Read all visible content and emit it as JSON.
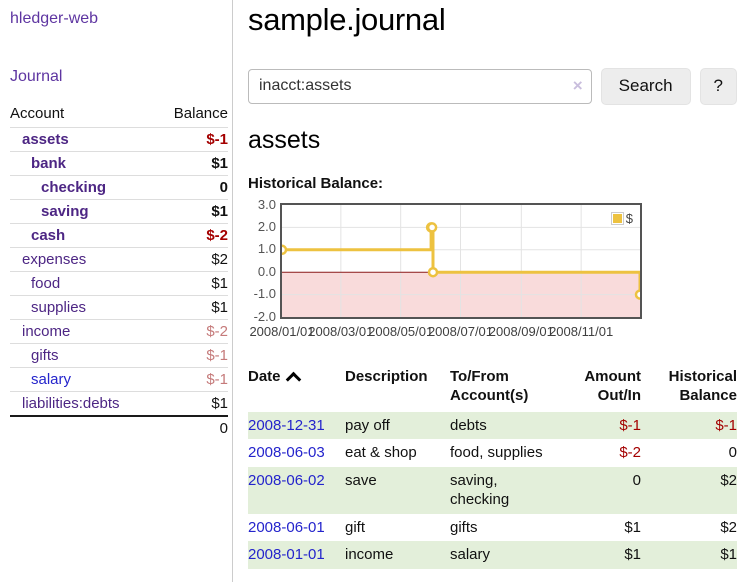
{
  "sidebar": {
    "brand": "hledger-web",
    "journal_label": "Journal",
    "accounts_table": {
      "account_header": "Account",
      "balance_header": "Balance",
      "rows": [
        {
          "name": "assets",
          "depth": 1,
          "bold": true,
          "balance": "$-1",
          "neg": "strong",
          "link": "purple"
        },
        {
          "name": "bank",
          "depth": 2,
          "bold": true,
          "balance": "$1",
          "neg": "none",
          "link": "purple"
        },
        {
          "name": "checking",
          "depth": 3,
          "bold": true,
          "balance": "0",
          "neg": "none",
          "link": "purple"
        },
        {
          "name": "saving",
          "depth": 3,
          "bold": true,
          "balance": "$1",
          "neg": "none",
          "link": "purple"
        },
        {
          "name": "cash",
          "depth": 2,
          "bold": true,
          "balance": "$-2",
          "neg": "strong",
          "link": "purple"
        },
        {
          "name": "expenses",
          "depth": 1,
          "bold": false,
          "balance": "$2",
          "neg": "none",
          "link": "purple"
        },
        {
          "name": "food",
          "depth": 2,
          "bold": false,
          "balance": "$1",
          "neg": "none",
          "link": "purple"
        },
        {
          "name": "supplies",
          "depth": 2,
          "bold": false,
          "balance": "$1",
          "neg": "none",
          "link": "purple"
        },
        {
          "name": "income",
          "depth": 1,
          "bold": false,
          "balance": "$-2",
          "neg": "soft",
          "link": "purple"
        },
        {
          "name": "gifts",
          "depth": 2,
          "bold": false,
          "balance": "$-1",
          "neg": "soft",
          "link": "purple"
        },
        {
          "name": "salary",
          "depth": 2,
          "bold": false,
          "balance": "$-1",
          "neg": "soft",
          "link": "blue"
        },
        {
          "name": "liabilities:debts",
          "depth": 1,
          "bold": false,
          "balance": "$1",
          "neg": "none",
          "link": "purple"
        }
      ],
      "total": "0"
    }
  },
  "main": {
    "title": "sample.journal",
    "search": {
      "value": "inacct:assets",
      "clear_icon": "×",
      "button_label": "Search",
      "help_label": "?"
    },
    "account_heading": "assets",
    "chart_label": "Historical Balance:"
  },
  "chart_data": {
    "type": "line",
    "title": "Historical Balance:",
    "style": "steps",
    "series": [
      {
        "name": "$",
        "color": "#edc240",
        "points": [
          [
            "2008-01-01",
            1
          ],
          [
            "2008-06-01",
            2
          ],
          [
            "2008-06-02",
            2
          ],
          [
            "2008-06-03",
            0
          ],
          [
            "2008-12-31",
            -1
          ]
        ]
      }
    ],
    "x_range": [
      "2008-01-01",
      "2008-12-31"
    ],
    "ylim": [
      -2,
      3
    ],
    "y_ticks": [
      {
        "v": 3,
        "label": "3.0"
      },
      {
        "v": 2,
        "label": "2.0"
      },
      {
        "v": 1,
        "label": "1.0"
      },
      {
        "v": 0,
        "label": "0.0"
      },
      {
        "v": -1,
        "label": "-1.0"
      },
      {
        "v": -2,
        "label": "-2.0"
      }
    ],
    "x_ticks": [
      {
        "d": "2008-01-01",
        "label": "2008/01/01"
      },
      {
        "d": "2008-03-01",
        "label": "2008/03/01"
      },
      {
        "d": "2008-05-01",
        "label": "2008/05/01"
      },
      {
        "d": "2008-07-01",
        "label": "2008/07/01"
      },
      {
        "d": "2008-09-01",
        "label": "2008/09/01"
      },
      {
        "d": "2008-11-01",
        "label": "2008/11/01"
      }
    ],
    "legend": {
      "position": "top-right",
      "entries": [
        "$"
      ]
    },
    "grid": true,
    "zero_line_color": "#8b1a1a",
    "negative_region_color": "#f9dbdb",
    "grid_color": "#e3e3e3"
  },
  "register": {
    "headers": {
      "date": "Date",
      "sort_indicator": "ascending",
      "description": "Description",
      "accounts": "To/From Account(s)",
      "amount": "Amount Out/In",
      "balance": "Historical Balance"
    },
    "rows": [
      {
        "date": "2008-12-31",
        "description": "pay off",
        "accounts": "debts",
        "amount": "$-1",
        "amount_neg": true,
        "balance": "$-1",
        "balance_neg": true,
        "shaded": true
      },
      {
        "date": "2008-06-03",
        "description": "eat & shop",
        "accounts": "food, supplies",
        "amount": "$-2",
        "amount_neg": true,
        "balance": "0",
        "balance_neg": false,
        "shaded": false
      },
      {
        "date": "2008-06-02",
        "description": "save",
        "accounts": "saving, checking",
        "amount": "0",
        "amount_neg": false,
        "balance": "$2",
        "balance_neg": false,
        "shaded": true
      },
      {
        "date": "2008-06-01",
        "description": "gift",
        "accounts": "gifts",
        "amount": "$1",
        "amount_neg": false,
        "balance": "$2",
        "balance_neg": false,
        "shaded": false
      },
      {
        "date": "2008-01-01",
        "description": "income",
        "accounts": "salary",
        "amount": "$1",
        "amount_neg": false,
        "balance": "$1",
        "balance_neg": false,
        "shaded": true
      }
    ]
  },
  "colors": {
    "link_purple": "#4d2684",
    "link_blue": "#2525cc",
    "negative_strong": "#a40000",
    "negative_soft": "#c57a7a",
    "row_shaded_green": "#e3efda",
    "series_yellow": "#edc240",
    "zero_line_red": "#8b1a1a",
    "negative_region_pink": "#f9dbdb"
  }
}
